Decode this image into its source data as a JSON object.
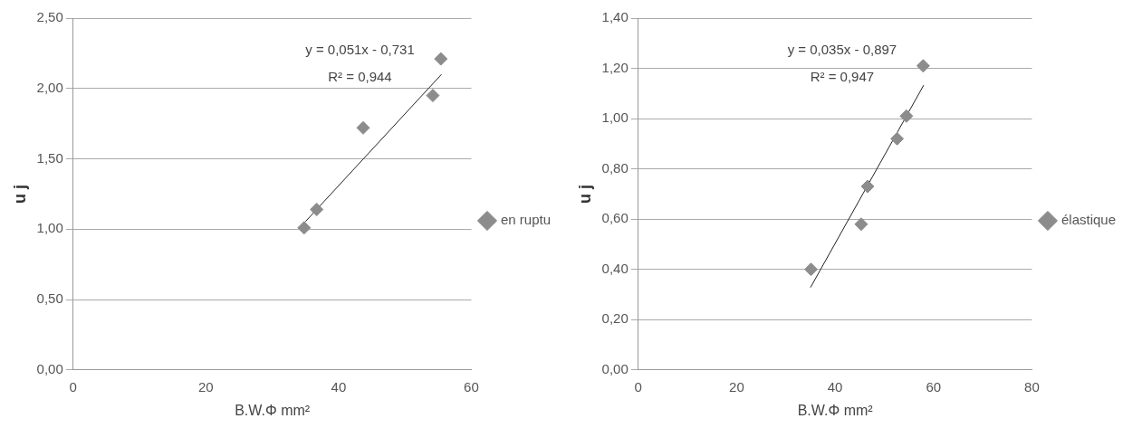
{
  "chart_data": [
    {
      "type": "scatter",
      "xlabel": "B.W.Φ mm²",
      "ylabel": "u j",
      "xlim": [
        0,
        60
      ],
      "xticks": [
        0,
        20,
        40,
        60
      ],
      "ylim": [
        0,
        2.5
      ],
      "yticks": [
        {
          "value": 0,
          "label": "0,00"
        },
        {
          "value": 0.5,
          "label": "0,50"
        },
        {
          "value": 1,
          "label": "1,00"
        },
        {
          "value": 1.5,
          "label": "1,50"
        },
        {
          "value": 2,
          "label": "2,00"
        },
        {
          "value": 2.5,
          "label": "2,50"
        }
      ],
      "grid": "y",
      "legend": "right",
      "annotations": [
        "y = 0,051x - 0,731",
        "R² = 0,944"
      ],
      "series": [
        {
          "name": "en ruptu",
          "color": "#8c8c8c",
          "marker": "diamond",
          "x": [
            34.8,
            36.7,
            43.7,
            54.2,
            55.4
          ],
          "values": [
            1.01,
            1.14,
            1.72,
            1.95,
            2.21
          ]
        },
        {
          "type": "line",
          "color": "#222222",
          "marker": "none",
          "x": [
            35,
            55.5
          ],
          "values": [
            1.054,
            2.1
          ]
        }
      ]
    },
    {
      "type": "scatter",
      "xlabel": "B.W.Φ mm²",
      "ylabel": "u j",
      "xlim": [
        0,
        80
      ],
      "xticks": [
        0,
        20,
        40,
        60,
        80
      ],
      "ylim": [
        0,
        1.4
      ],
      "yticks": [
        {
          "value": 0,
          "label": "0,00"
        },
        {
          "value": 0.2,
          "label": "0,20"
        },
        {
          "value": 0.4,
          "label": "0,40"
        },
        {
          "value": 0.6,
          "label": "0,60"
        },
        {
          "value": 0.8,
          "label": "0,80"
        },
        {
          "value": 1,
          "label": "1,00"
        },
        {
          "value": 1.2,
          "label": "1,20"
        },
        {
          "value": 1.4,
          "label": "1,40"
        }
      ],
      "grid": "y",
      "legend": "right",
      "annotations": [
        "y = 0,035x - 0,897",
        "R² = 0,947"
      ],
      "series": [
        {
          "name": "élastique",
          "color": "#8c8c8c",
          "marker": "diamond",
          "x": [
            35.1,
            45.3,
            46.6,
            52.6,
            54.5,
            57.9
          ],
          "values": [
            0.4,
            0.58,
            0.73,
            0.92,
            1.01,
            1.21
          ]
        },
        {
          "type": "line",
          "color": "#222222",
          "marker": "none",
          "x": [
            35,
            58
          ],
          "values": [
            0.328,
            1.133
          ]
        }
      ]
    }
  ]
}
